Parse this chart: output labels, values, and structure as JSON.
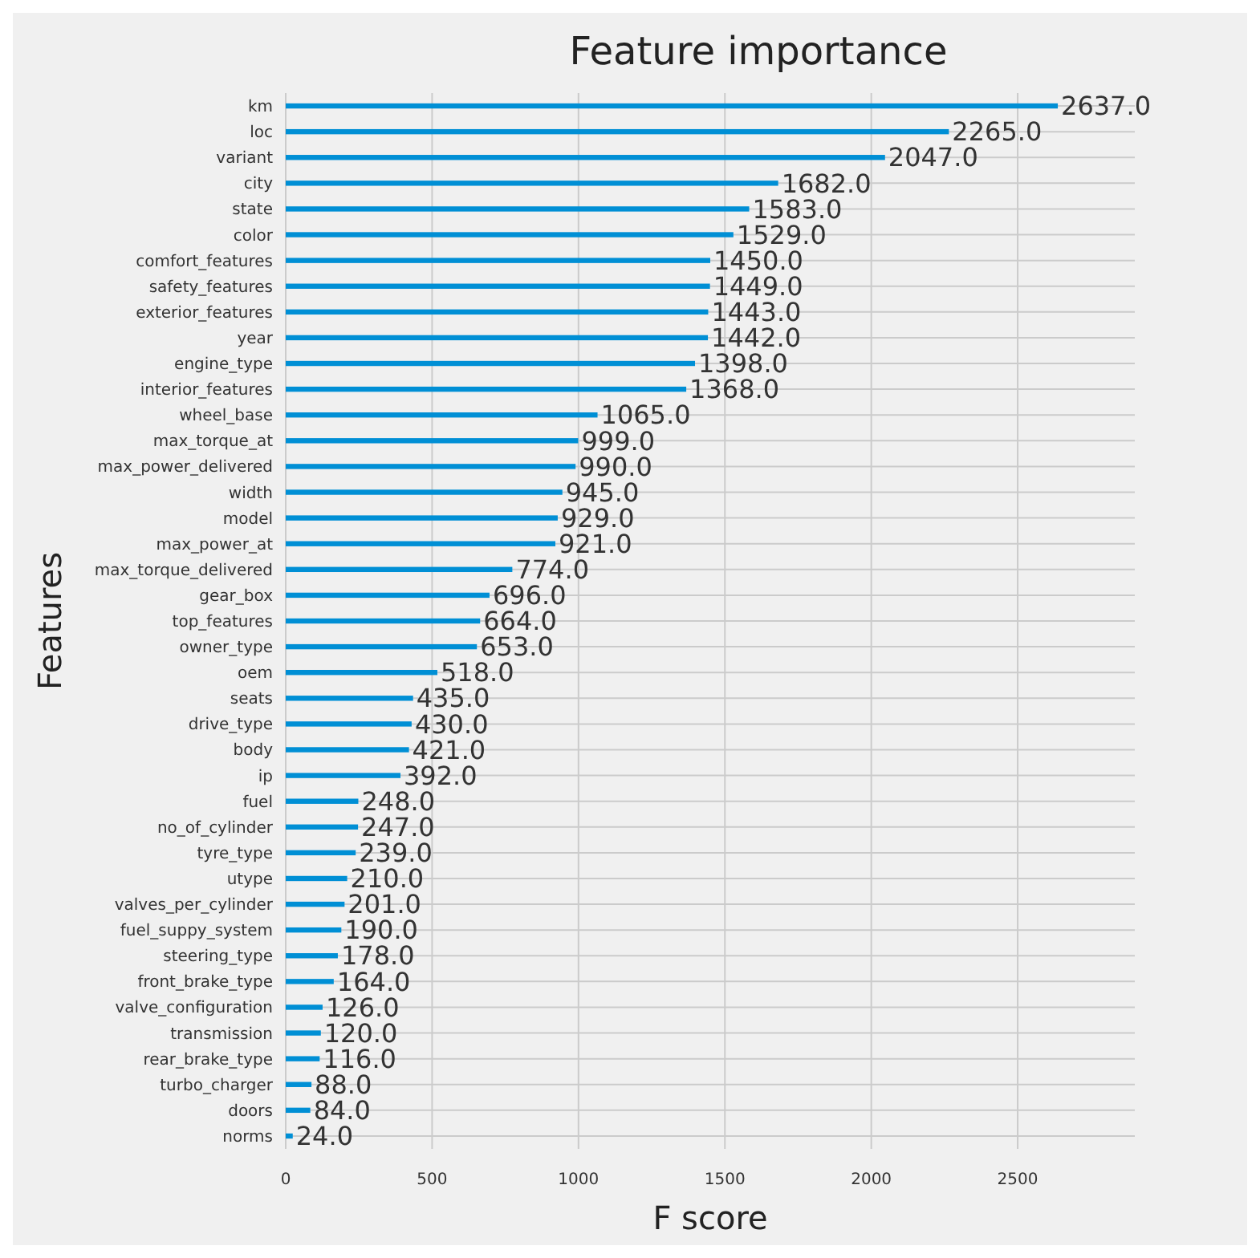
{
  "chart_data": {
    "type": "bar",
    "orientation": "horizontal",
    "title": "Feature importance",
    "xlabel": "F score",
    "ylabel": "Features",
    "categories": [
      "km",
      "loc",
      "variant",
      "city",
      "state",
      "color",
      "comfort_features",
      "safety_features",
      "exterior_features",
      "year",
      "engine_type",
      "interior_features",
      "wheel_base",
      "max_torque_at",
      "max_power_delivered",
      "width",
      "model",
      "max_power_at",
      "max_torque_delivered",
      "gear_box",
      "top_features",
      "owner_type",
      "oem",
      "seats",
      "drive_type",
      "body",
      "ip",
      "fuel",
      "no_of_cylinder",
      "tyre_type",
      "utype",
      "valves_per_cylinder",
      "fuel_suppy_system",
      "steering_type",
      "front_brake_type",
      "valve_configuration",
      "transmission",
      "rear_brake_type",
      "turbo_charger",
      "doors",
      "norms"
    ],
    "values": [
      2637,
      2265,
      2047,
      1682,
      1583,
      1529,
      1450,
      1449,
      1443,
      1442,
      1398,
      1368,
      1065,
      999,
      990,
      945,
      929,
      921,
      774,
      696,
      664,
      653,
      518,
      435,
      430,
      421,
      392,
      248,
      247,
      239,
      210,
      201,
      190,
      178,
      164,
      126,
      120,
      116,
      88,
      84,
      24
    ],
    "value_labels": [
      "2637.0",
      "2265.0",
      "2047.0",
      "1682.0",
      "1583.0",
      "1529.0",
      "1450.0",
      "1449.0",
      "1443.0",
      "1442.0",
      "1398.0",
      "1368.0",
      "1065.0",
      "999.0",
      "990.0",
      "945.0",
      "929.0",
      "921.0",
      "774.0",
      "696.0",
      "664.0",
      "653.0",
      "518.0",
      "435.0",
      "430.0",
      "421.0",
      "392.0",
      "248.0",
      "247.0",
      "239.0",
      "210.0",
      "201.0",
      "190.0",
      "178.0",
      "164.0",
      "126.0",
      "120.0",
      "116.0",
      "88.0",
      "84.0",
      "24.0"
    ],
    "color": "#008fd5",
    "xlim": [
      0,
      2900
    ],
    "xticks": [
      0,
      500,
      1000,
      1500,
      2000,
      2500
    ],
    "grid": true
  }
}
